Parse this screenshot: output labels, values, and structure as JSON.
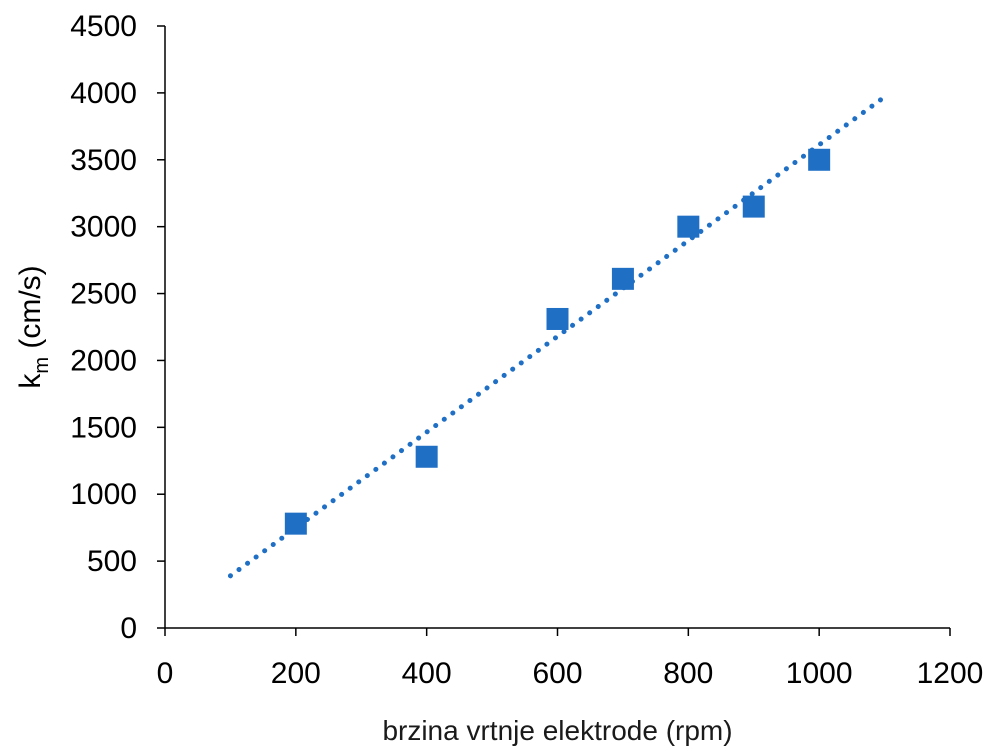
{
  "chart_data": {
    "type": "scatter",
    "title": "",
    "xlabel": "brzina vrtnje elektrode (rpm)",
    "ylabel_main": "k",
    "ylabel_sub": "m",
    "ylabel_unit": " (cm/s)",
    "xlim": [
      0,
      1200
    ],
    "ylim": [
      0,
      4500
    ],
    "xticks": [
      0,
      200,
      400,
      600,
      800,
      1000,
      1200
    ],
    "yticks": [
      0,
      500,
      1000,
      1500,
      2000,
      2500,
      3000,
      3500,
      4000,
      4500
    ],
    "grid": false,
    "legend": "none",
    "series": [
      {
        "x": [
          200,
          400,
          600,
          700,
          800,
          900,
          1000
        ],
        "y": [
          780,
          1280,
          2310,
          2610,
          3000,
          3150,
          3500
        ],
        "marker": "square",
        "color": "#1f6fc5"
      }
    ],
    "trendline": {
      "style": "dotted",
      "color": "#1f6fc5",
      "x": [
        100,
        1100
      ],
      "y": [
        390,
        3970
      ]
    }
  }
}
